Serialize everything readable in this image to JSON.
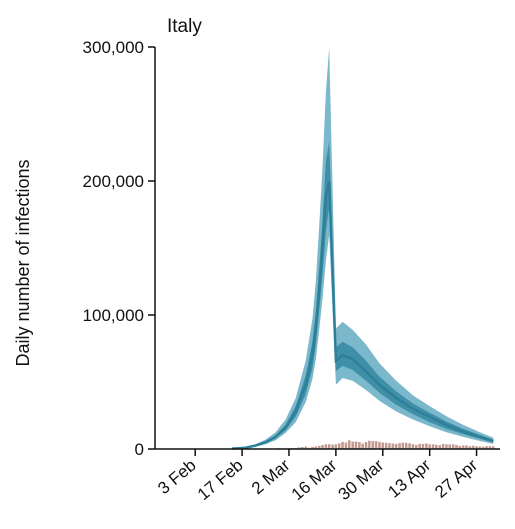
{
  "chart_data": {
    "type": "area",
    "title": "Italy",
    "xlabel": "",
    "ylabel": "Daily number of infections",
    "y_tick_labels": [
      "0",
      "100,000",
      "200,000",
      "300,000"
    ],
    "y_tick_values": [
      0,
      100000,
      200000,
      300000
    ],
    "ylim": [
      0,
      300000
    ],
    "x_tick_labels": [
      "3 Feb",
      "17 Feb",
      "2 Mar",
      "16 Mar",
      "30 Mar",
      "13 Apr",
      "27 Apr"
    ],
    "x_tick_values": [
      "2020-02-03",
      "2020-02-17",
      "2020-03-02",
      "2020-03-16",
      "2020-03-30",
      "2020-04-13",
      "2020-04-27"
    ],
    "xlim": [
      "2020-01-22",
      "2020-05-04"
    ],
    "grid": false,
    "series": [
      {
        "role": "estimate",
        "x": [
          "2020-02-14",
          "2020-02-18",
          "2020-02-21",
          "2020-02-24",
          "2020-02-27",
          "2020-03-01",
          "2020-03-04",
          "2020-03-07",
          "2020-03-09",
          "2020-03-10",
          "2020-03-11",
          "2020-03-12",
          "2020-03-13",
          "2020-03-14",
          "2020-03-16",
          "2020-03-18",
          "2020-03-21",
          "2020-03-25",
          "2020-03-29",
          "2020-04-03",
          "2020-04-08",
          "2020-04-13",
          "2020-04-18",
          "2020-04-23",
          "2020-04-28",
          "2020-05-02"
        ],
        "median": [
          300,
          1000,
          2500,
          5000,
          9000,
          16000,
          28000,
          48000,
          70000,
          90000,
          118000,
          150000,
          188000,
          200000,
          66000,
          70000,
          67000,
          58000,
          48000,
          38000,
          30000,
          24000,
          18000,
          13000,
          9000,
          6000
        ],
        "inner_low": [
          250,
          850,
          2100,
          4300,
          7800,
          14000,
          24000,
          41000,
          60000,
          78000,
          102000,
          130000,
          162000,
          180000,
          58000,
          62000,
          59000,
          51000,
          42000,
          33000,
          26000,
          20000,
          15000,
          11000,
          7500,
          4800
        ],
        "inner_high": [
          350,
          1150,
          2900,
          5800,
          10300,
          18200,
          32000,
          55000,
          80000,
          103000,
          134000,
          170000,
          214000,
          230000,
          76000,
          80000,
          76000,
          66000,
          54000,
          43000,
          34000,
          27000,
          20500,
          15000,
          10500,
          7000
        ],
        "outer_low": [
          200,
          700,
          1800,
          3600,
          6500,
          12000,
          20000,
          35000,
          52000,
          67000,
          88000,
          112000,
          140000,
          160000,
          48000,
          53000,
          51000,
          44000,
          36000,
          28000,
          22000,
          17000,
          12500,
          9000,
          6000,
          3800
        ],
        "outer_high": [
          420,
          1400,
          3500,
          7000,
          12500,
          22000,
          38000,
          66000,
          97000,
          125000,
          165000,
          210000,
          265000,
          300000,
          90000,
          95000,
          89000,
          78000,
          64000,
          51000,
          40000,
          32000,
          24500,
          18000,
          12500,
          8500
        ]
      },
      {
        "role": "reported",
        "start": "2020-02-21",
        "values": [
          20,
          60,
          90,
          120,
          200,
          250,
          240,
          570,
          340,
          470,
          560,
          780,
          780,
          1250,
          1490,
          1800,
          970,
          1600,
          1900,
          2300,
          3000,
          3500,
          3600,
          3200,
          3500,
          4200,
          5300,
          4800,
          6500,
          5500,
          5600,
          5200,
          4000,
          5200,
          6200,
          5900,
          5900,
          5200,
          4800,
          4600,
          4300,
          4100,
          3800,
          4300,
          4800,
          4600,
          4300,
          3600,
          3000,
          3900,
          3800,
          4200,
          3500,
          3500,
          3100,
          2900,
          3800,
          3500,
          3400,
          3500,
          3000,
          2300,
          2700,
          2700,
          2100,
          2400,
          2000,
          1900,
          1700,
          2100,
          2200,
          2000
        ]
      }
    ]
  },
  "colors": {
    "median": "#2e7f98",
    "inner_band": "#3f8fa8",
    "outer_band": "#7cb8cc",
    "reported": "#c39990",
    "axis": "#111111"
  }
}
